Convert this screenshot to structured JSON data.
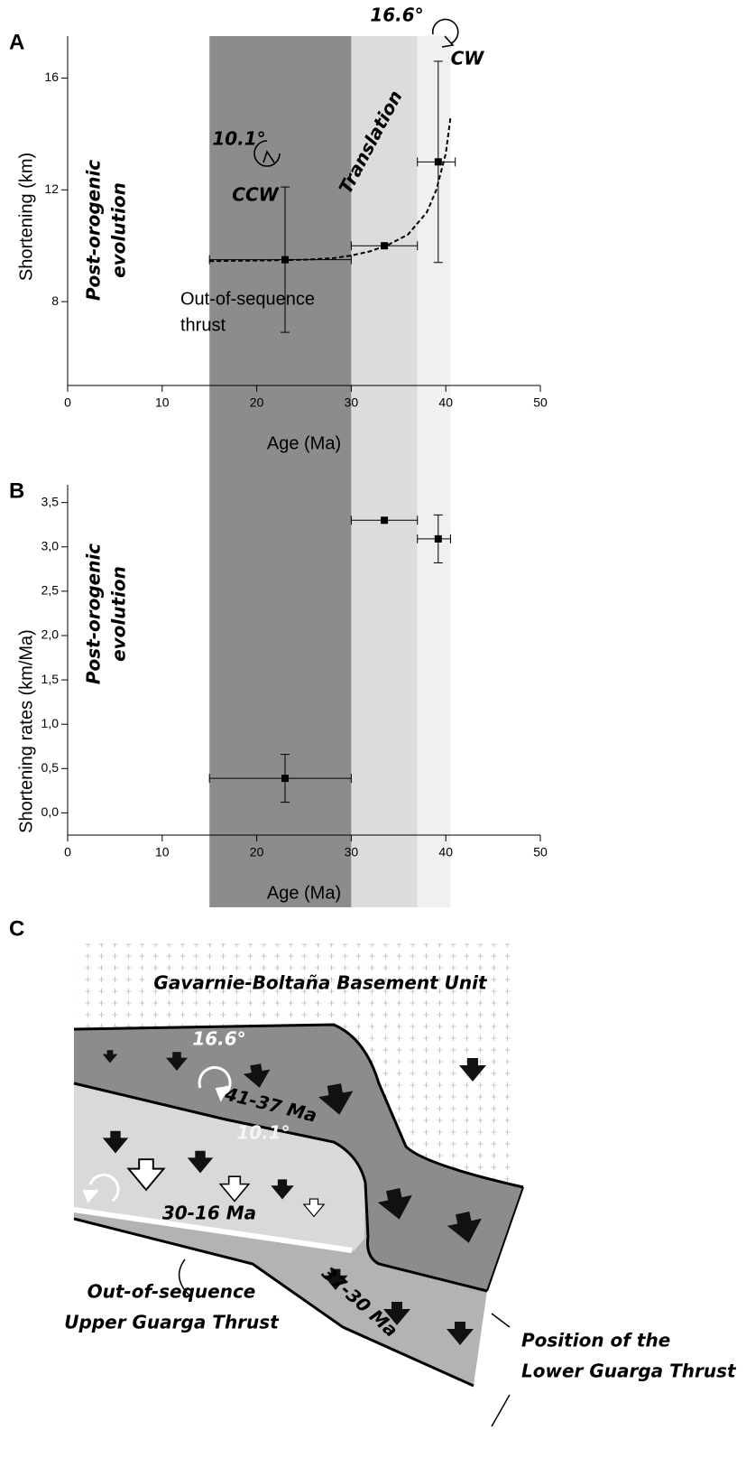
{
  "chart_data": [
    {
      "type": "scatter",
      "panel": "A",
      "x_label": "Age (Ma)",
      "y_label": "Shortening (km)",
      "xlim": [
        0,
        50
      ],
      "xticks": [
        0,
        10,
        20,
        30,
        40,
        50
      ],
      "ylim": [
        5,
        17.5
      ],
      "yticks": [
        8,
        12,
        16
      ],
      "x": [
        23,
        33.5,
        39.2
      ],
      "values": [
        9.5,
        10.0,
        13.0
      ],
      "yerr": [
        2.6,
        0,
        3.6
      ],
      "xerr_minus": [
        8,
        3.5,
        2.2
      ],
      "xerr_plus": [
        7,
        3.5,
        1.8
      ],
      "color": "#000000",
      "bands": [
        {
          "from": 15,
          "to": 30,
          "color": "#8c8c8c"
        },
        {
          "from": 30,
          "to": 37,
          "color": "#dcdcdc"
        },
        {
          "from": 37,
          "to": 40.5,
          "color": "#f0f0f0"
        }
      ],
      "fit": {
        "x": [
          15,
          20,
          25,
          28,
          30,
          32,
          34,
          36,
          38,
          39,
          40,
          40.5
        ],
        "values": [
          9.45,
          9.47,
          9.5,
          9.55,
          9.65,
          9.8,
          10.05,
          10.4,
          11.2,
          12,
          13.3,
          14.6
        ]
      },
      "annotations": [
        "10.1°",
        "CCW",
        "Translation",
        "16.6°",
        "CW",
        "Post-orogenic",
        "evolution",
        "Out-of-sequence",
        "thrust"
      ]
    },
    {
      "type": "scatter",
      "panel": "B",
      "x_label": "Age (Ma)",
      "y_label": "Shortening rates (km/Ma)",
      "xlim": [
        0,
        50
      ],
      "xticks": [
        0,
        10,
        20,
        30,
        40,
        50
      ],
      "ylim": [
        -0.25,
        3.7
      ],
      "yticks": [
        {
          "value": 0,
          "label": "0,0"
        },
        {
          "value": 0.5,
          "label": "0,5"
        },
        {
          "value": 1,
          "label": "1,0"
        },
        {
          "value": 1.5,
          "label": "1,5"
        },
        {
          "value": 2,
          "label": "2,0"
        },
        {
          "value": 2.5,
          "label": "2,5"
        },
        {
          "value": 3,
          "label": "3,0"
        },
        {
          "value": 3.5,
          "label": "3,5"
        }
      ],
      "x": [
        23,
        33.5,
        39.2
      ],
      "values": [
        0.39,
        3.3,
        3.09
      ],
      "yerr": [
        0.27,
        0,
        0.27
      ],
      "xerr_minus": [
        8,
        3.5,
        2.2
      ],
      "xerr_plus": [
        7,
        3.5,
        1.3
      ],
      "color": "#000000",
      "annotations": [
        "Post-orogenic",
        "evolution"
      ]
    }
  ],
  "diagram": {
    "panel": "C",
    "labels": [
      "Gavarnie-Boltaña Basement Unit",
      "16.6°",
      "41-37 Ma",
      "10.1°",
      "30-16 Ma",
      "37-30 Ma",
      "Out-of-sequence",
      "Upper Guarga Thrust",
      "Position of the",
      "Lower Guarga Thrust"
    ]
  }
}
